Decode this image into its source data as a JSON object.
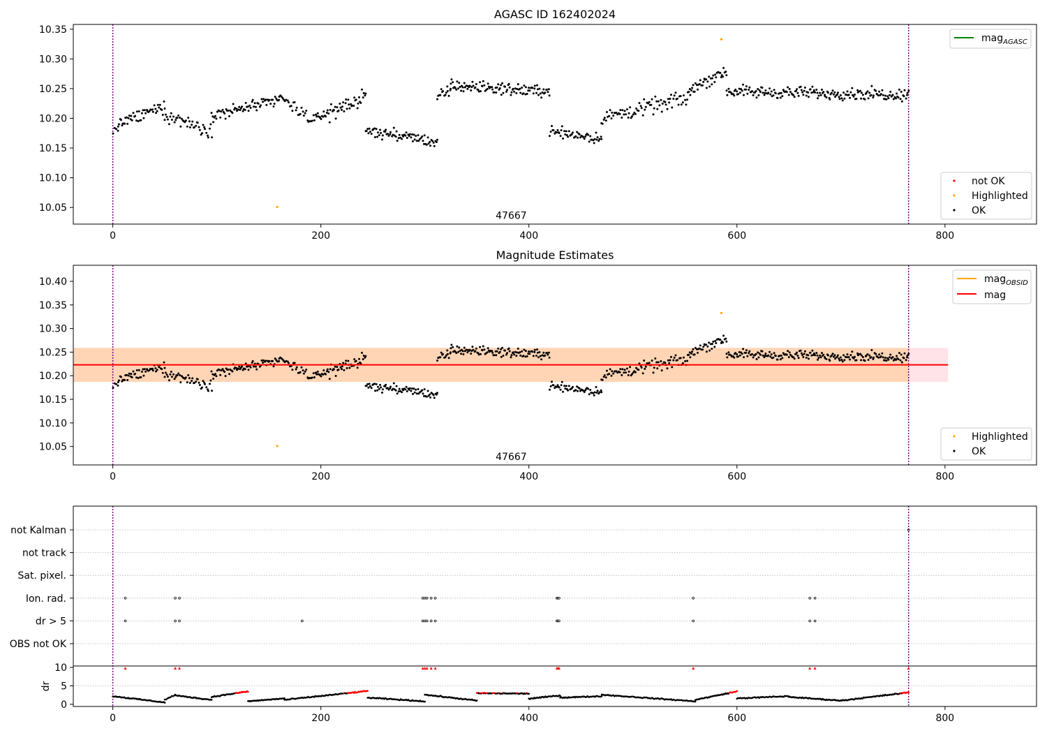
{
  "chart_data": [
    {
      "type": "scatter",
      "title": "AGASC ID 162402024",
      "xlim": [
        -38,
        888
      ],
      "ylim": [
        10.022,
        10.358
      ],
      "xticks": [
        0,
        200,
        400,
        600,
        800
      ],
      "yticks": [
        10.05,
        10.1,
        10.15,
        10.2,
        10.25,
        10.3,
        10.35
      ],
      "vlines": [
        0,
        765
      ],
      "annotation": {
        "text": "47667",
        "x": 383,
        "y": 10.031
      },
      "legend_upper": {
        "position": "upper-right",
        "label": "mag",
        "label_sub": "AGASC",
        "color": "#008000"
      },
      "legend_lower": {
        "position": "lower-right",
        "entries": [
          {
            "label": "not OK",
            "color": "#ff0000"
          },
          {
            "label": "Highlighted",
            "color": "#ffa500"
          },
          {
            "label": "OK",
            "color": "#000000"
          }
        ]
      },
      "highlighted": [
        {
          "x": 158,
          "y": 10.051
        },
        {
          "x": 585,
          "y": 10.333
        }
      ],
      "segments": [
        {
          "x0": 0,
          "x1": 5,
          "n": 4,
          "start": 10.175,
          "end": 10.19,
          "noise": 0.017
        },
        {
          "x0": 5,
          "x1": 50,
          "n": 50,
          "start": 10.19,
          "end": 10.22,
          "noise": 0.017
        },
        {
          "x0": 50,
          "x1": 95,
          "n": 45,
          "start": 10.205,
          "end": 10.18,
          "noise": 0.02
        },
        {
          "x0": 95,
          "x1": 160,
          "n": 70,
          "start": 10.205,
          "end": 10.23,
          "noise": 0.018
        },
        {
          "x0": 160,
          "x1": 195,
          "n": 32,
          "start": 10.235,
          "end": 10.195,
          "noise": 0.02
        },
        {
          "x0": 195,
          "x1": 243,
          "n": 55,
          "start": 10.2,
          "end": 10.235,
          "noise": 0.022
        },
        {
          "x0": 243,
          "x1": 312,
          "n": 75,
          "start": 10.18,
          "end": 10.16,
          "noise": 0.016
        },
        {
          "x0": 312,
          "x1": 325,
          "n": 15,
          "start": 10.235,
          "end": 10.245,
          "noise": 0.02
        },
        {
          "x0": 325,
          "x1": 420,
          "n": 110,
          "start": 10.255,
          "end": 10.245,
          "noise": 0.017
        },
        {
          "x0": 420,
          "x1": 470,
          "n": 55,
          "start": 10.18,
          "end": 10.165,
          "noise": 0.016
        },
        {
          "x0": 470,
          "x1": 555,
          "n": 85,
          "start": 10.2,
          "end": 10.235,
          "noise": 0.022
        },
        {
          "x0": 555,
          "x1": 590,
          "n": 40,
          "start": 10.25,
          "end": 10.28,
          "noise": 0.02
        },
        {
          "x0": 590,
          "x1": 765,
          "n": 200,
          "start": 10.245,
          "end": 10.24,
          "noise": 0.017
        }
      ]
    },
    {
      "type": "scatter",
      "title": "Magnitude Estimates",
      "xlim": [
        -38,
        888
      ],
      "ylim": [
        10.011,
        10.434
      ],
      "xticks": [
        0,
        200,
        400,
        600,
        800
      ],
      "yticks": [
        10.05,
        10.1,
        10.15,
        10.2,
        10.25,
        10.3,
        10.35,
        10.4
      ],
      "vlines": [
        0,
        765
      ],
      "annotation": {
        "text": "47667",
        "x": 383,
        "y": 10.021
      },
      "mag_line": {
        "value": 10.223,
        "x0": -38,
        "x1": 803,
        "color": "#ff0000"
      },
      "band_outer": {
        "y0": 10.187,
        "y1": 10.259,
        "x0": -38,
        "x1": 803,
        "color": "#ffc0cb"
      },
      "band_inner": {
        "y0": 10.187,
        "y1": 10.259,
        "x0": -38,
        "x1": 765,
        "color": "#ffa500"
      },
      "legend_upper": {
        "position": "upper-right",
        "entries": [
          {
            "label": "mag",
            "label_sub": "OBSID",
            "color": "#ffa500"
          },
          {
            "label": "mag",
            "label_sub": "",
            "color": "#ff0000"
          }
        ]
      },
      "legend_lower": {
        "position": "lower-right",
        "entries": [
          {
            "label": "Highlighted",
            "color": "#ffa500"
          },
          {
            "label": "OK",
            "color": "#000000"
          }
        ]
      },
      "reuse_points_from": 0
    },
    {
      "type": "scatter",
      "title": "",
      "xlim": [
        -38,
        888
      ],
      "xticks": [
        0,
        200,
        400,
        600,
        800
      ],
      "vlines": [
        0,
        765
      ],
      "flag_labels": [
        "not Kalman",
        "not track",
        "Sat. pixel.",
        "Ion. rad.",
        "dr > 5",
        "OBS not OK"
      ],
      "flag_points": {
        "not Kalman": [
          765
        ],
        "not track": [],
        "Sat. pixel.": [],
        "Ion. rad.": [
          12,
          60,
          64,
          298,
          300,
          302,
          306,
          310,
          427,
          428,
          429,
          558,
          670,
          675
        ],
        "dr > 5": [
          12,
          60,
          64,
          182,
          298,
          300,
          302,
          306,
          310,
          427,
          428,
          429,
          558,
          670,
          675
        ],
        "OBS not OK": []
      },
      "dr": {
        "ylabel": "dr",
        "ylim": [
          -0.6,
          10.4
        ],
        "yticks": [
          0,
          5,
          10
        ],
        "threshold": 5,
        "high_points": [
          12,
          60,
          64,
          298,
          300,
          302,
          306,
          310,
          427,
          428,
          429,
          558,
          670,
          675,
          765
        ],
        "segments": [
          {
            "x0": 0,
            "x1": 50,
            "n": 55,
            "start": 2.2,
            "end": 0.5
          },
          {
            "x0": 50,
            "x1": 60,
            "n": 10,
            "start": 1.2,
            "end": 2.6
          },
          {
            "x0": 60,
            "x1": 95,
            "n": 40,
            "start": 2.4,
            "end": 1.2
          },
          {
            "x0": 95,
            "x1": 130,
            "n": 40,
            "start": 2.0,
            "end": 3.5
          },
          {
            "x0": 130,
            "x1": 165,
            "n": 40,
            "start": 0.8,
            "end": 1.6
          },
          {
            "x0": 165,
            "x1": 245,
            "n": 85,
            "start": 1.2,
            "end": 3.6
          },
          {
            "x0": 245,
            "x1": 300,
            "n": 60,
            "start": 1.8,
            "end": 0.8
          },
          {
            "x0": 300,
            "x1": 350,
            "n": 55,
            "start": 2.6,
            "end": 1.0
          },
          {
            "x0": 350,
            "x1": 400,
            "n": 60,
            "start": 3.0,
            "end": 2.9
          },
          {
            "x0": 400,
            "x1": 430,
            "n": 35,
            "start": 1.5,
            "end": 2.4
          },
          {
            "x0": 430,
            "x1": 470,
            "n": 45,
            "start": 1.8,
            "end": 2.2
          },
          {
            "x0": 470,
            "x1": 560,
            "n": 90,
            "start": 2.6,
            "end": 0.8
          },
          {
            "x0": 560,
            "x1": 600,
            "n": 45,
            "start": 1.2,
            "end": 3.5
          },
          {
            "x0": 600,
            "x1": 650,
            "n": 50,
            "start": 1.6,
            "end": 2.2
          },
          {
            "x0": 650,
            "x1": 700,
            "n": 55,
            "start": 2.0,
            "end": 1.0
          },
          {
            "x0": 700,
            "x1": 765,
            "n": 70,
            "start": 1.0,
            "end": 3.2
          }
        ]
      }
    }
  ]
}
